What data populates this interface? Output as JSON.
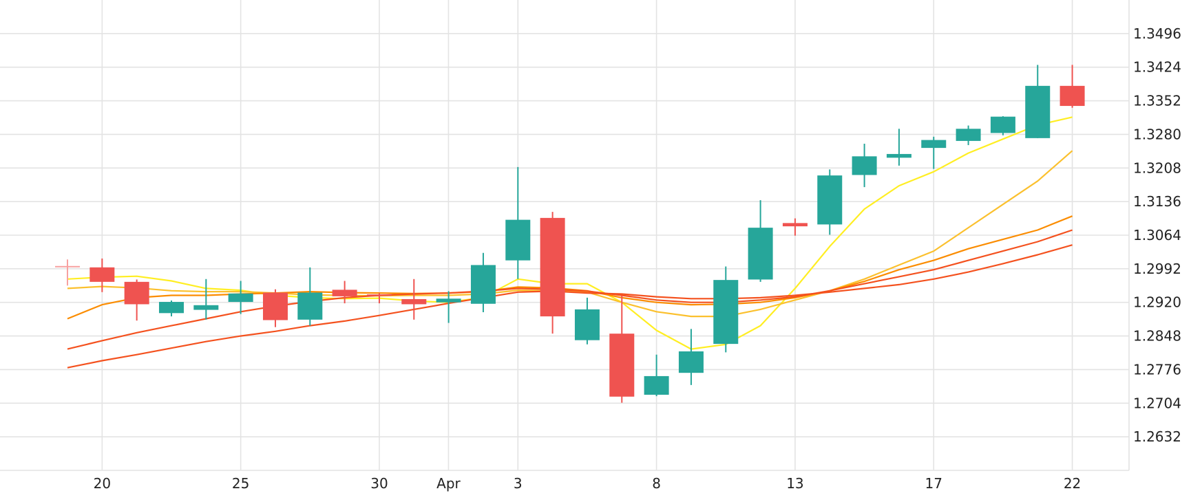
{
  "chart_data": {
    "type": "candlestick",
    "title": "",
    "xlabel": "",
    "ylabel": "",
    "x_ticks": [
      {
        "label": "20",
        "index": 1
      },
      {
        "label": "25",
        "index": 5
      },
      {
        "label": "30",
        "index": 9
      },
      {
        "label": "Apr",
        "index": 11
      },
      {
        "label": "3",
        "index": 13
      },
      {
        "label": "8",
        "index": 17
      },
      {
        "label": "13",
        "index": 21
      },
      {
        "label": "17",
        "index": 25
      },
      {
        "label": "22",
        "index": 29
      }
    ],
    "y_ticks": [
      "1.2632",
      "1.2704",
      "1.2776",
      "1.2848",
      "1.2920",
      "1.2992",
      "1.3064",
      "1.3136",
      "1.3208",
      "1.3280",
      "1.3352",
      "1.3424",
      "1.3496"
    ],
    "ylim": [
      1.256,
      1.3568
    ],
    "grid": true,
    "colors": {
      "up": "#26a69a",
      "down": "#ef5350",
      "flat": "#f7a1a0",
      "ma1": "#ffee22",
      "ma2": "#fbc02d",
      "ma3": "#fb8c00",
      "ma4": "#f4511e",
      "grid": "#e3e3e3"
    },
    "candles": [
      {
        "i": 0,
        "open": 1.2998,
        "high": 1.3012,
        "low": 1.2956,
        "close": 1.2998
      },
      {
        "i": 1,
        "open": 1.2995,
        "high": 1.3014,
        "low": 1.2942,
        "close": 1.2964
      },
      {
        "i": 2,
        "open": 1.2964,
        "high": 1.2969,
        "low": 1.2881,
        "close": 1.2916
      },
      {
        "i": 3,
        "open": 1.2897,
        "high": 1.2924,
        "low": 1.289,
        "close": 1.2921
      },
      {
        "i": 4,
        "open": 1.2904,
        "high": 1.297,
        "low": 1.2883,
        "close": 1.2914
      },
      {
        "i": 5,
        "open": 1.2921,
        "high": 1.2966,
        "low": 1.2895,
        "close": 1.2939
      },
      {
        "i": 6,
        "open": 1.2941,
        "high": 1.2948,
        "low": 1.2867,
        "close": 1.2882
      },
      {
        "i": 7,
        "open": 1.2883,
        "high": 1.2995,
        "low": 1.287,
        "close": 1.2941
      },
      {
        "i": 8,
        "open": 1.2947,
        "high": 1.2966,
        "low": 1.2918,
        "close": 1.2933
      },
      {
        "i": 9,
        "open": 1.2937,
        "high": 1.294,
        "low": 1.2918,
        "close": 1.2935
      },
      {
        "i": 10,
        "open": 1.2927,
        "high": 1.297,
        "low": 1.2883,
        "close": 1.2916
      },
      {
        "i": 11,
        "open": 1.292,
        "high": 1.2944,
        "low": 1.2876,
        "close": 1.2928
      },
      {
        "i": 12,
        "open": 1.2917,
        "high": 1.3026,
        "low": 1.2899,
        "close": 1.3
      },
      {
        "i": 13,
        "open": 1.301,
        "high": 1.321,
        "low": 1.297,
        "close": 1.3097
      },
      {
        "i": 14,
        "open": 1.3101,
        "high": 1.3114,
        "low": 1.2853,
        "close": 1.289
      },
      {
        "i": 15,
        "open": 1.2839,
        "high": 1.293,
        "low": 1.283,
        "close": 1.2905
      },
      {
        "i": 16,
        "open": 1.2853,
        "high": 1.2934,
        "low": 1.2705,
        "close": 1.2718
      },
      {
        "i": 17,
        "open": 1.2722,
        "high": 1.2808,
        "low": 1.2719,
        "close": 1.2762
      },
      {
        "i": 18,
        "open": 1.2769,
        "high": 1.2863,
        "low": 1.2743,
        "close": 1.2815
      },
      {
        "i": 19,
        "open": 1.2831,
        "high": 1.2997,
        "low": 1.2813,
        "close": 1.2968
      },
      {
        "i": 20,
        "open": 1.2969,
        "high": 1.3139,
        "low": 1.2964,
        "close": 1.308
      },
      {
        "i": 21,
        "open": 1.309,
        "high": 1.31,
        "low": 1.3063,
        "close": 1.3083
      },
      {
        "i": 22,
        "open": 1.3087,
        "high": 1.3205,
        "low": 1.3065,
        "close": 1.3192
      },
      {
        "i": 23,
        "open": 1.3193,
        "high": 1.326,
        "low": 1.3167,
        "close": 1.3233
      },
      {
        "i": 24,
        "open": 1.323,
        "high": 1.3292,
        "low": 1.3213,
        "close": 1.3238
      },
      {
        "i": 25,
        "open": 1.3251,
        "high": 1.3275,
        "low": 1.3206,
        "close": 1.3268
      },
      {
        "i": 26,
        "open": 1.3266,
        "high": 1.3299,
        "low": 1.3257,
        "close": 1.3292
      },
      {
        "i": 27,
        "open": 1.3283,
        "high": 1.3319,
        "low": 1.3278,
        "close": 1.3318
      },
      {
        "i": 28,
        "open": 1.3272,
        "high": 1.3429,
        "low": 1.3272,
        "close": 1.3384
      },
      {
        "i": 29,
        "open": 1.3384,
        "high": 1.3429,
        "low": 1.3337,
        "close": 1.3341
      }
    ],
    "moving_averages": [
      {
        "color_key": "ma1",
        "values": [
          1.297,
          1.2974,
          1.2976,
          1.2966,
          1.295,
          1.2946,
          1.2935,
          1.293,
          1.2928,
          1.2929,
          1.2923,
          1.292,
          1.2931,
          1.297,
          1.296,
          1.296,
          1.292,
          1.286,
          1.282,
          1.283,
          1.287,
          1.295,
          1.304,
          1.312,
          1.317,
          1.32,
          1.324,
          1.327,
          1.33,
          1.3317
        ]
      },
      {
        "color_key": "ma2",
        "values": [
          1.295,
          1.2954,
          1.2951,
          1.2945,
          1.2943,
          1.2943,
          1.294,
          1.2936,
          1.2935,
          1.2934,
          1.2935,
          1.2935,
          1.2938,
          1.2946,
          1.2945,
          1.2942,
          1.292,
          1.29,
          1.289,
          1.289,
          1.2905,
          1.2925,
          1.2945,
          1.297,
          1.3,
          1.303,
          1.308,
          1.313,
          1.318,
          1.3245
        ]
      },
      {
        "color_key": "ma3",
        "values": [
          1.2885,
          1.2915,
          1.293,
          1.2935,
          1.2935,
          1.2938,
          1.294,
          1.2943,
          1.2941,
          1.294,
          1.2939,
          1.294,
          1.2943,
          1.2953,
          1.2951,
          1.2945,
          1.293,
          1.292,
          1.2915,
          1.2916,
          1.292,
          1.293,
          1.2945,
          1.2965,
          1.299,
          1.301,
          1.3035,
          1.3055,
          1.3075,
          1.3105
        ]
      },
      {
        "color_key": "ma4",
        "values": [
          1.282,
          1.2838,
          1.2855,
          1.287,
          1.2885,
          1.29,
          1.2912,
          1.2922,
          1.293,
          1.2935,
          1.2938,
          1.294,
          1.2944,
          1.295,
          1.2948,
          1.2944,
          1.2935,
          1.2925,
          1.292,
          1.292,
          1.2925,
          1.2932,
          1.2945,
          1.296,
          1.2975,
          1.299,
          1.301,
          1.303,
          1.305,
          1.3075
        ]
      },
      {
        "color_key": "ma4",
        "values": [
          1.278,
          1.2795,
          1.2808,
          1.2822,
          1.2836,
          1.2848,
          1.2858,
          1.287,
          1.288,
          1.2892,
          1.2905,
          1.2918,
          1.293,
          1.2942,
          1.2944,
          1.294,
          1.2938,
          1.2932,
          1.2928,
          1.2928,
          1.293,
          1.2935,
          1.2942,
          1.295,
          1.2958,
          1.297,
          1.2985,
          1.3003,
          1.3022,
          1.3043
        ]
      }
    ]
  }
}
